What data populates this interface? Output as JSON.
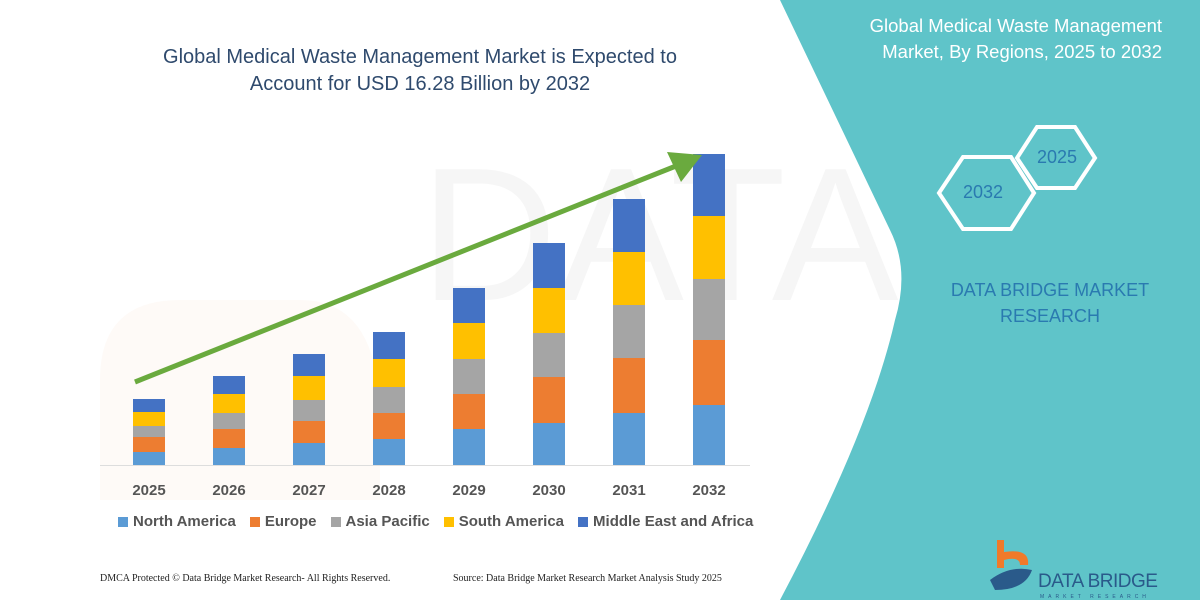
{
  "header": {
    "title_line1": "Global Medical Waste Management Market is Expected to",
    "title_line2": "Account for USD 16.28 Billion by 2032"
  },
  "panel": {
    "title_line1": "Global Medical Waste Management",
    "title_line2": "Market, By Regions, 2025 to 2032",
    "hex_start": "2025",
    "hex_end": "2032",
    "brand_line1": "DATA BRIDGE MARKET",
    "brand_line2": "RESEARCH",
    "logo_name": "DATA BRIDGE",
    "logo_sub": "MARKET RESEARCH"
  },
  "footer": {
    "left": "DMCA Protected © Data Bridge Market Research- All Rights Reserved.",
    "right": "Source: Data Bridge Market Research Market Analysis Study 2025"
  },
  "colors": {
    "panel": "#5fc4c9",
    "arrow": "#6aaa3e",
    "title": "#2f4a6d"
  },
  "chart_data": {
    "type": "bar",
    "stacked": true,
    "title": "Global Medical Waste Management Market is Expected to Account for USD 16.28 Billion by 2032",
    "categories": [
      "2025",
      "2026",
      "2027",
      "2028",
      "2029",
      "2030",
      "2031",
      "2032"
    ],
    "series": [
      {
        "name": "North America",
        "color": "#5b9bd5",
        "values": [
          13,
          17,
          22,
          26,
          36,
          42,
          52,
          60
        ]
      },
      {
        "name": "Europe",
        "color": "#ed7d31",
        "values": [
          15,
          19,
          22,
          26,
          35,
          46,
          55,
          65
        ]
      },
      {
        "name": "Asia Pacific",
        "color": "#a5a5a5",
        "values": [
          11,
          16,
          21,
          26,
          35,
          44,
          53,
          61
        ]
      },
      {
        "name": "South America",
        "color": "#ffc000",
        "values": [
          14,
          19,
          24,
          28,
          36,
          45,
          53,
          63
        ]
      },
      {
        "name": "Middle East and Africa",
        "color": "#4472c4",
        "values": [
          13,
          18,
          22,
          27,
          35,
          45,
          53,
          62
        ]
      }
    ],
    "yaxis_shown": false,
    "grid": false,
    "legend": "bottom",
    "trend_arrow": true
  }
}
